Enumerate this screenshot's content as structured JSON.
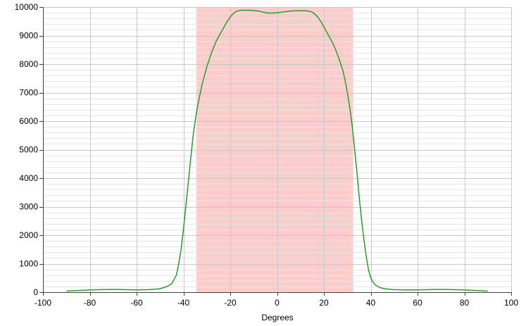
{
  "chart_data": {
    "type": "line",
    "title": "",
    "xlabel": "Degrees",
    "ylabel": "",
    "xlim": [
      -100,
      100
    ],
    "ylim": [
      0,
      10000
    ],
    "x_ticks": [
      -100,
      -80,
      -60,
      -40,
      -20,
      0,
      20,
      40,
      60,
      80,
      100
    ],
    "y_ticks": [
      0,
      1000,
      2000,
      3000,
      4000,
      5000,
      6000,
      7000,
      8000,
      9000,
      10000
    ],
    "grid": true,
    "legend": "none",
    "highlight_band": {
      "x_start": -34.5,
      "x_end": 32.5,
      "color": "#ffcccc"
    },
    "series": [
      {
        "color": "#2e9a2e",
        "x": [
          -90,
          -85,
          -80,
          -75,
          -70,
          -65,
          -60,
          -55,
          -50,
          -47,
          -45,
          -43,
          -42,
          -41,
          -40,
          -39,
          -38,
          -37,
          -36,
          -35,
          -34,
          -33,
          -32,
          -31,
          -30,
          -29,
          -28,
          -27,
          -26,
          -25,
          -24,
          -23,
          -22,
          -21,
          -20,
          -19,
          -18,
          -17,
          -16,
          -15,
          -14,
          -12,
          -10,
          -8,
          -6,
          -4,
          -2,
          0,
          2,
          4,
          6,
          8,
          10,
          12,
          14,
          15,
          16,
          17,
          18,
          19,
          20,
          21,
          22,
          23,
          24,
          25,
          26,
          27,
          28,
          29,
          30,
          31,
          32,
          33,
          34,
          35,
          36,
          37,
          38,
          39,
          40,
          41,
          42,
          44,
          46,
          50,
          55,
          60,
          65,
          70,
          75,
          80,
          85,
          90
        ],
        "y": [
          40,
          60,
          80,
          90,
          100,
          90,
          80,
          90,
          120,
          200,
          300,
          600,
          1000,
          1500,
          2200,
          3000,
          3800,
          4600,
          5400,
          6000,
          6500,
          6900,
          7300,
          7600,
          7900,
          8150,
          8400,
          8600,
          8800,
          8950,
          9100,
          9250,
          9400,
          9530,
          9650,
          9750,
          9820,
          9860,
          9880,
          9890,
          9890,
          9890,
          9880,
          9860,
          9820,
          9790,
          9790,
          9800,
          9820,
          9840,
          9860,
          9870,
          9870,
          9870,
          9850,
          9820,
          9760,
          9680,
          9580,
          9450,
          9300,
          9150,
          9000,
          8850,
          8700,
          8500,
          8300,
          8050,
          7800,
          7450,
          7000,
          6500,
          5900,
          5100,
          4300,
          3400,
          2600,
          1900,
          1300,
          800,
          500,
          350,
          250,
          160,
          120,
          90,
          80,
          80,
          90,
          100,
          90,
          80,
          60,
          40
        ]
      }
    ]
  }
}
